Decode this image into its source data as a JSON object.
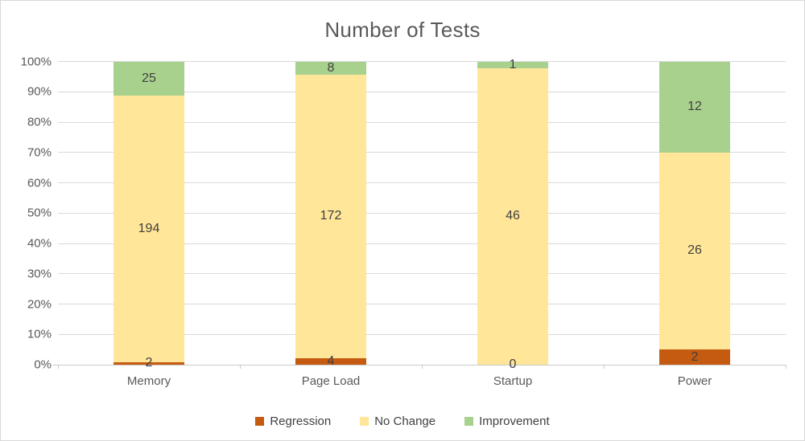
{
  "chart_data": {
    "type": "bar",
    "subtype": "stacked-100-percent",
    "title": "Number of Tests",
    "categories": [
      "Memory",
      "Page Load",
      "Startup",
      "Power"
    ],
    "series": [
      {
        "name": "Regression",
        "color": "#C55A11",
        "values": [
          2,
          4,
          0,
          2
        ]
      },
      {
        "name": "No Change",
        "color": "#FFE699",
        "values": [
          194,
          172,
          46,
          26
        ]
      },
      {
        "name": "Improvement",
        "color": "#A9D18E",
        "values": [
          25,
          8,
          1,
          12
        ]
      }
    ],
    "data_labels": true,
    "y_axis": {
      "min": 0,
      "max": 100,
      "step": 10,
      "format": "percent",
      "tick_labels": [
        "0%",
        "10%",
        "20%",
        "30%",
        "40%",
        "50%",
        "60%",
        "70%",
        "80%",
        "90%",
        "100%"
      ]
    },
    "x_axis": {
      "tick_labels": [
        "Memory",
        "Page Load",
        "Startup",
        "Power"
      ]
    },
    "grid": true,
    "legend": {
      "position": "bottom",
      "labels": [
        "Regression",
        "No Change",
        "Improvement"
      ]
    }
  }
}
